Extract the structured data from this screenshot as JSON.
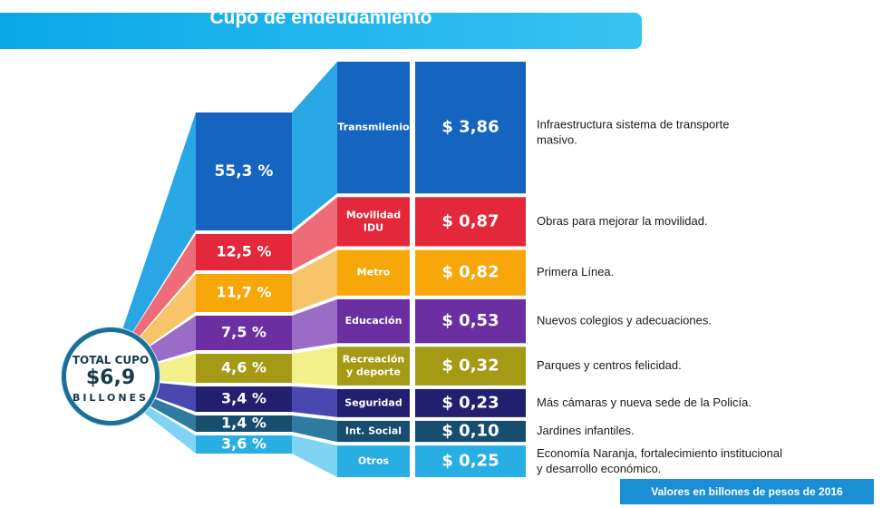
{
  "title": "Cupo de endeudamiento",
  "footer_note": "Valores en billones de pesos de 2016",
  "total": {
    "label": "TOTAL CUPO",
    "value": "$6,9",
    "unit": "BILLONES"
  },
  "chart_data": {
    "type": "table",
    "title": "Cupo de endeudamiento",
    "rows": [
      {
        "category": "Transmilenio",
        "percent_label": "55,3 %",
        "percent": 55.3,
        "value_label": "$ 3,86",
        "value": 3.86,
        "description": "Infraestructura sistema de transporte masivo.",
        "color": "#1565c0",
        "light": "#29a7e4"
      },
      {
        "category": "Movilidad IDU",
        "percent_label": "12,5 %",
        "percent": 12.5,
        "value_label": "$ 0,87",
        "value": 0.87,
        "description": "Obras para mejorar la movilidad.",
        "color": "#e3283c",
        "light": "#ee6c78"
      },
      {
        "category": "Metro",
        "percent_label": "11,7 %",
        "percent": 11.7,
        "value_label": "$ 0,82",
        "value": 0.82,
        "description": "Primera Línea.",
        "color": "#f7a70a",
        "light": "#f7c46a"
      },
      {
        "category": "Educación",
        "percent_label": "7,5 %",
        "percent": 7.5,
        "value_label": "$ 0,53",
        "value": 0.53,
        "description": "Nuevos colegios y adecuaciones.",
        "color": "#6b2fa2",
        "light": "#9a6cc6"
      },
      {
        "category": "Recreación y deporte",
        "percent_label": "4,6 %",
        "percent": 4.6,
        "value_label": "$ 0,32",
        "value": 0.32,
        "description": "Parques y centros felicidad.",
        "color": "#a49a16",
        "light": "#f2f08a"
      },
      {
        "category": "Seguridad",
        "percent_label": "3,4 %",
        "percent": 3.4,
        "value_label": "$ 0,23",
        "value": 0.23,
        "description": "Más cámaras y nueva sede de la Policía.",
        "color": "#22206e",
        "light": "#4a47b0"
      },
      {
        "category": "Int. Social",
        "percent_label": "1,4 %",
        "percent": 1.4,
        "value_label": "$ 0,10",
        "value": 0.1,
        "description": "Jardines infantiles.",
        "color": "#174d6e",
        "light": "#2f7aa0"
      },
      {
        "category": "Otros",
        "percent_label": "3,6 %",
        "percent": 3.6,
        "value_label": "$ 0,25",
        "value": 0.25,
        "description": "Economía Naranja, fortalecimiento institucional y desarrollo económico.",
        "color": "#29aee4",
        "light": "#7fd4f3"
      }
    ]
  }
}
